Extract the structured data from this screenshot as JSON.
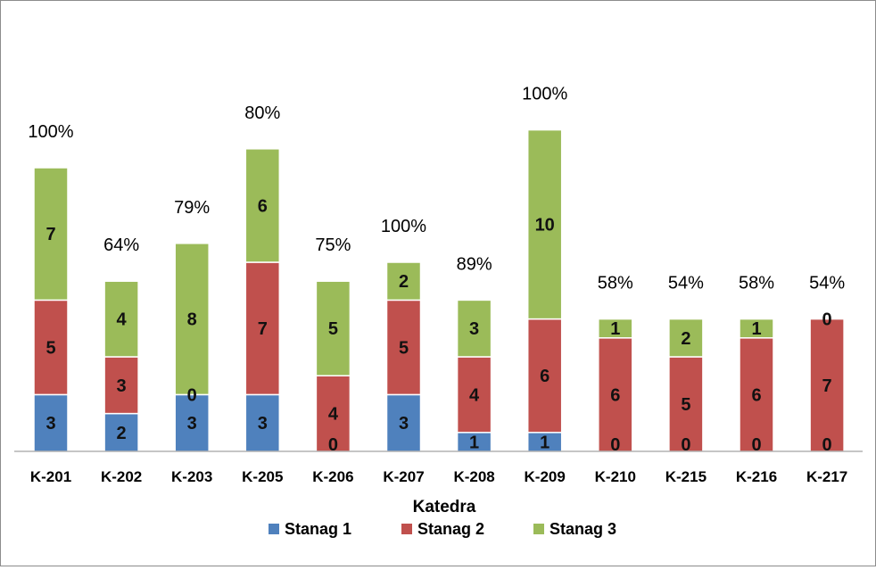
{
  "chart_data": {
    "type": "bar",
    "stacked": true,
    "xlabel": "Katedra",
    "categories": [
      "K-201",
      "K-202",
      "K-203",
      "K-205",
      "K-206",
      "K-207",
      "K-208",
      "K-209",
      "K-210",
      "K-215",
      "K-216",
      "K-217"
    ],
    "series": [
      {
        "name": "Stanag 1",
        "color": "#4F81BD",
        "values": [
          3,
          2,
          3,
          3,
          0,
          3,
          1,
          1,
          0,
          0,
          0,
          0
        ]
      },
      {
        "name": "Stanag 2",
        "color": "#C0504D",
        "values": [
          5,
          3,
          0,
          7,
          4,
          5,
          4,
          6,
          6,
          5,
          6,
          7
        ]
      },
      {
        "name": "Stanag 3",
        "color": "#9BBB59",
        "values": [
          7,
          4,
          8,
          6,
          5,
          2,
          3,
          10,
          1,
          2,
          1,
          0
        ]
      }
    ],
    "percent_labels": [
      "100%",
      "64%",
      "79%",
      "80%",
      "75%",
      "100%",
      "89%",
      "100%",
      "58%",
      "54%",
      "58%",
      "54%"
    ],
    "ylim": [
      0,
      17
    ],
    "grid": false,
    "legend_position": "bottom"
  }
}
